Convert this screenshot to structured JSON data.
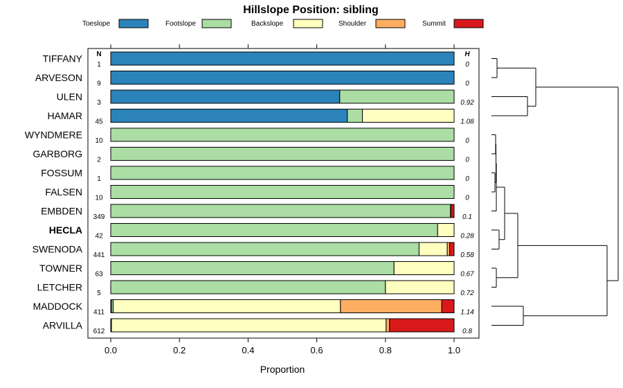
{
  "chart_data": {
    "type": "bar",
    "orientation": "horizontal",
    "stacked": true,
    "title": "Hillslope Position: sibling",
    "xlabel": "Proportion",
    "ylabel": "",
    "xlim": [
      0,
      1
    ],
    "xticks": [
      "0.0",
      "0.2",
      "0.4",
      "0.6",
      "0.8",
      "1.0"
    ],
    "n_header": "N",
    "h_header": "H",
    "legend_placement": "top",
    "series": [
      {
        "name": "Toeslope",
        "color": "#2b83ba"
      },
      {
        "name": "Footslope",
        "color": "#abdda4"
      },
      {
        "name": "Backslope",
        "color": "#ffffbf"
      },
      {
        "name": "Shoulder",
        "color": "#fdae61"
      },
      {
        "name": "Summit",
        "color": "#d7191c"
      }
    ],
    "categories": [
      "TIFFANY",
      "ARVESON",
      "ULEN",
      "HAMAR",
      "WYNDMERE",
      "GARBORG",
      "FOSSUM",
      "FALSEN",
      "EMBDEN",
      "HECLA",
      "SWENODA",
      "TOWNER",
      "LETCHER",
      "MADDOCK",
      "ARVILLA"
    ],
    "highlighted": "HECLA",
    "rows": [
      {
        "label": "TIFFANY",
        "n": "1",
        "h": "0",
        "values": [
          1.0,
          0,
          0,
          0,
          0
        ]
      },
      {
        "label": "ARVESON",
        "n": "9",
        "h": "0",
        "values": [
          1.0,
          0,
          0,
          0,
          0
        ]
      },
      {
        "label": "ULEN",
        "n": "3",
        "h": "0.92",
        "values": [
          0.667,
          0.333,
          0,
          0,
          0
        ]
      },
      {
        "label": "HAMAR",
        "n": "45",
        "h": "1.08",
        "values": [
          0.689,
          0.044,
          0.267,
          0,
          0
        ]
      },
      {
        "label": "WYNDMERE",
        "n": "10",
        "h": "0",
        "values": [
          0,
          1.0,
          0,
          0,
          0
        ]
      },
      {
        "label": "GARBORG",
        "n": "2",
        "h": "0",
        "values": [
          0,
          1.0,
          0,
          0,
          0
        ]
      },
      {
        "label": "FOSSUM",
        "n": "1",
        "h": "0",
        "values": [
          0,
          1.0,
          0,
          0,
          0
        ]
      },
      {
        "label": "FALSEN",
        "n": "10",
        "h": "0",
        "values": [
          0,
          1.0,
          0,
          0,
          0
        ]
      },
      {
        "label": "EMBDEN",
        "n": "349",
        "h": "0.1",
        "values": [
          0,
          0.989,
          0,
          0.003,
          0.008
        ]
      },
      {
        "label": "HECLA",
        "n": "42",
        "h": "0.28",
        "values": [
          0,
          0.952,
          0.048,
          0,
          0
        ]
      },
      {
        "label": "SWENODA",
        "n": "441",
        "h": "0.58",
        "values": [
          0,
          0.898,
          0.082,
          0.007,
          0.013
        ]
      },
      {
        "label": "TOWNER",
        "n": "63",
        "h": "0.67",
        "values": [
          0,
          0.825,
          0.175,
          0,
          0
        ]
      },
      {
        "label": "LETCHER",
        "n": "5",
        "h": "0.72",
        "values": [
          0,
          0.8,
          0.2,
          0,
          0
        ]
      },
      {
        "label": "MADDOCK",
        "n": "411",
        "h": "1.14",
        "values": [
          0.002,
          0.005,
          0.662,
          0.295,
          0.036
        ]
      },
      {
        "label": "ARVILLA",
        "n": "612",
        "h": "0.8",
        "values": [
          0.002,
          0,
          0.8,
          0.01,
          0.188
        ]
      }
    ],
    "dendrogram": true
  }
}
